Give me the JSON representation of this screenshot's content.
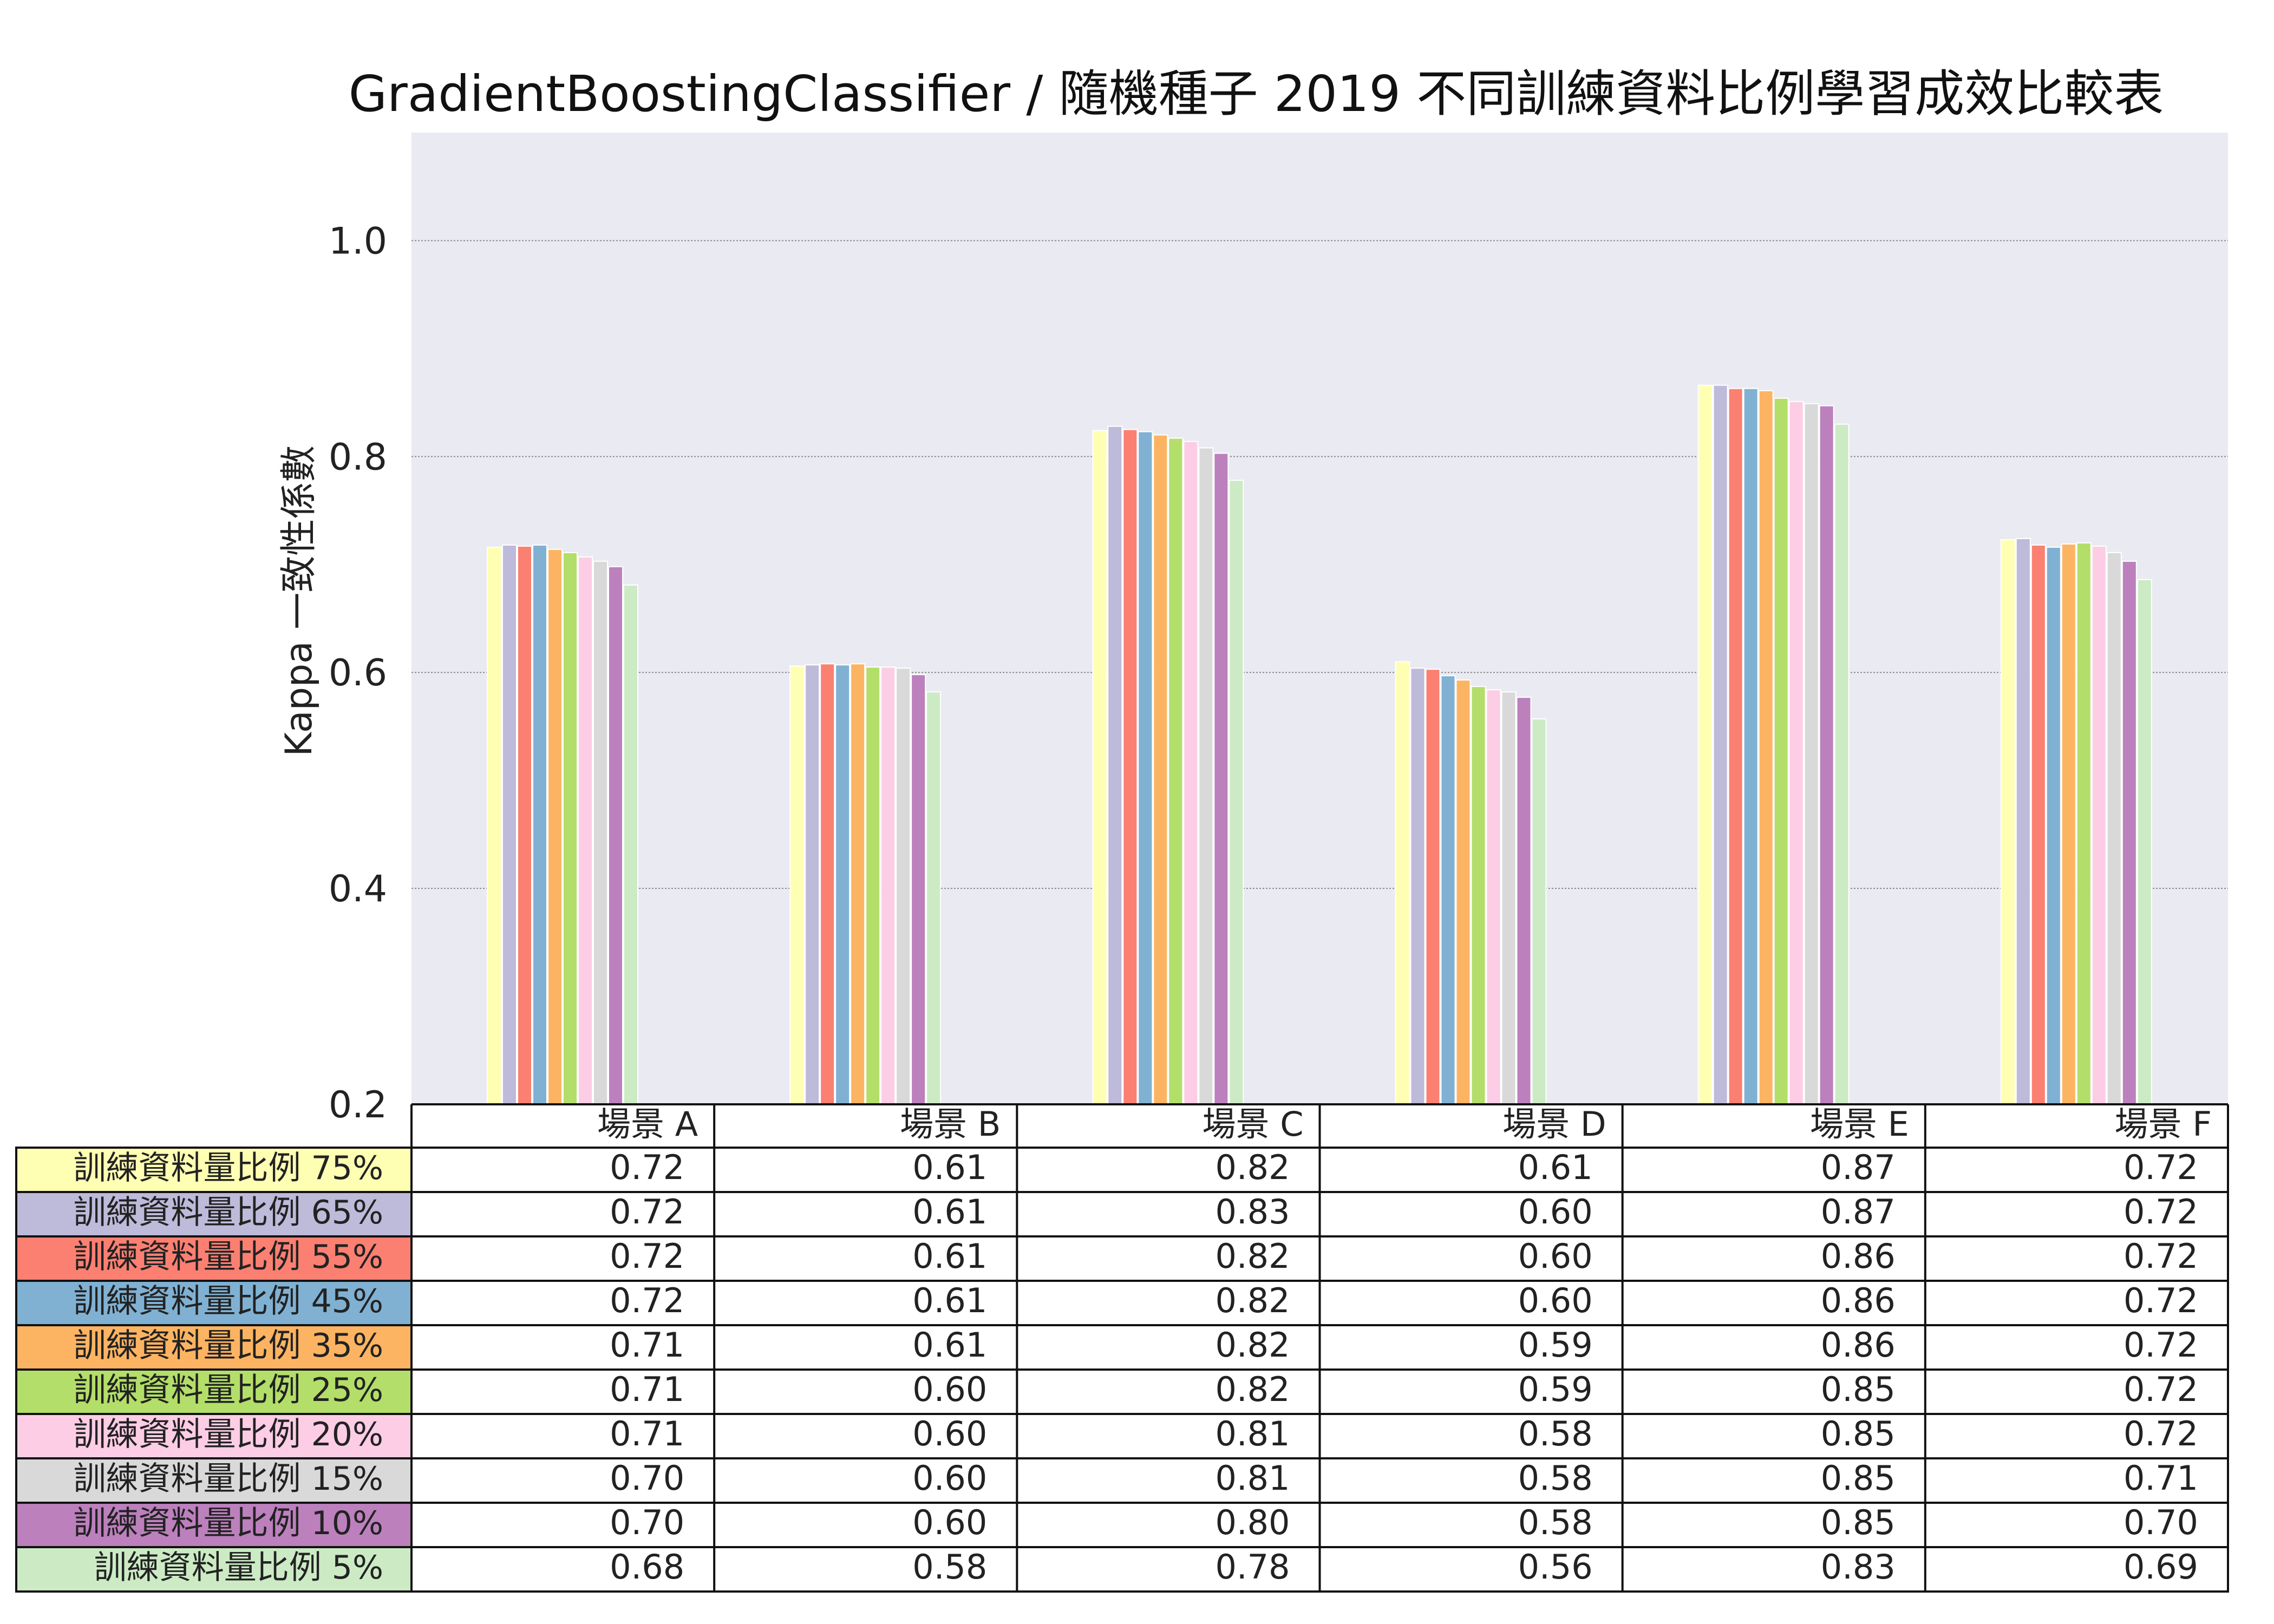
{
  "chart_data": {
    "type": "bar",
    "title": "GradientBoostingClassifier / 隨機種子 2019 不同訓練資料比例學習成效比較表",
    "xlabel": "",
    "ylabel": "Kappa 一致性係數",
    "ylim": [
      0.2,
      1.1
    ],
    "yticks": [
      "0.2",
      "0.4",
      "0.6",
      "0.8",
      "1.0"
    ],
    "grid": true,
    "categories": [
      "場景 A",
      "場景 B",
      "場景 C",
      "場景 D",
      "場景 E",
      "場景 F"
    ],
    "series": [
      {
        "name": "訓練資料量比例 75%",
        "color": "#ffffb3",
        "values": [
          0.716,
          0.606,
          0.824,
          0.61,
          0.866,
          0.723
        ],
        "table": [
          "0.72",
          "0.61",
          "0.82",
          "0.61",
          "0.87",
          "0.72"
        ]
      },
      {
        "name": "訓練資料量比例 65%",
        "color": "#bebada",
        "values": [
          0.718,
          0.607,
          0.828,
          0.604,
          0.866,
          0.724
        ],
        "table": [
          "0.72",
          "0.61",
          "0.83",
          "0.60",
          "0.87",
          "0.72"
        ]
      },
      {
        "name": "訓練資料量比例 55%",
        "color": "#fb8072",
        "values": [
          0.717,
          0.608,
          0.825,
          0.603,
          0.863,
          0.718
        ],
        "table": [
          "0.72",
          "0.61",
          "0.82",
          "0.60",
          "0.86",
          "0.72"
        ]
      },
      {
        "name": "訓練資料量比例 45%",
        "color": "#80b1d3",
        "values": [
          0.718,
          0.607,
          0.823,
          0.597,
          0.863,
          0.716
        ],
        "table": [
          "0.72",
          "0.61",
          "0.82",
          "0.60",
          "0.86",
          "0.72"
        ]
      },
      {
        "name": "訓練資料量比例 35%",
        "color": "#fdb462",
        "values": [
          0.714,
          0.608,
          0.82,
          0.593,
          0.861,
          0.719
        ],
        "table": [
          "0.71",
          "0.61",
          "0.82",
          "0.59",
          "0.86",
          "0.72"
        ]
      },
      {
        "name": "訓練資料量比例 25%",
        "color": "#b3de69",
        "values": [
          0.711,
          0.605,
          0.817,
          0.587,
          0.854,
          0.72
        ],
        "table": [
          "0.71",
          "0.60",
          "0.82",
          "0.59",
          "0.85",
          "0.72"
        ]
      },
      {
        "name": "訓練資料量比例 20%",
        "color": "#fccde5",
        "values": [
          0.707,
          0.605,
          0.814,
          0.584,
          0.851,
          0.717
        ],
        "table": [
          "0.71",
          "0.60",
          "0.81",
          "0.58",
          "0.85",
          "0.72"
        ]
      },
      {
        "name": "訓練資料量比例 15%",
        "color": "#d9d9d9",
        "values": [
          0.703,
          0.604,
          0.808,
          0.582,
          0.849,
          0.711
        ],
        "table": [
          "0.70",
          "0.60",
          "0.81",
          "0.58",
          "0.85",
          "0.71"
        ]
      },
      {
        "name": "訓練資料量比例 10%",
        "color": "#bc80bd",
        "values": [
          0.698,
          0.598,
          0.803,
          0.577,
          0.847,
          0.703
        ],
        "table": [
          "0.70",
          "0.60",
          "0.80",
          "0.58",
          "0.85",
          "0.70"
        ]
      },
      {
        "name": "訓練資料量比例 5%",
        "color": "#ccebc5",
        "values": [
          0.681,
          0.582,
          0.778,
          0.557,
          0.83,
          0.686
        ],
        "table": [
          "0.68",
          "0.58",
          "0.78",
          "0.56",
          "0.83",
          "0.69"
        ]
      }
    ]
  }
}
